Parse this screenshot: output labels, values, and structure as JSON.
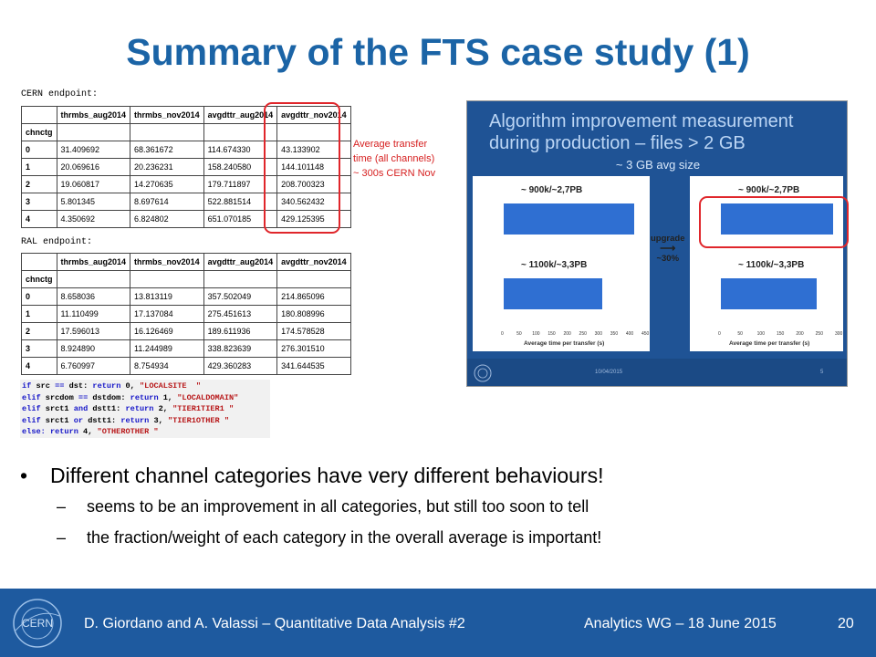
{
  "slide": {
    "title": "Summary of the FTS case study (1)",
    "cern_label": "CERN endpoint:",
    "ral_label": "RAL endpoint:",
    "annotation": [
      "Average transfer",
      "time (all channels)",
      "~ 300s CERN Nov"
    ],
    "tables": {
      "headers": [
        "",
        "thrmbs_aug2014",
        "thrmbs_nov2014",
        "avgdttr_aug2014",
        "avgdttr_nov2014"
      ],
      "index_label": "chnctg",
      "cern": [
        [
          "0",
          "31.409692",
          "68.361672",
          "114.674330",
          "43.133902"
        ],
        [
          "1",
          "20.069616",
          "20.236231",
          "158.240580",
          "144.101148"
        ],
        [
          "2",
          "19.060817",
          "14.270635",
          "179.711897",
          "208.700323"
        ],
        [
          "3",
          "5.801345",
          "8.697614",
          "522.881514",
          "340.562432"
        ],
        [
          "4",
          "4.350692",
          "6.824802",
          "651.070185",
          "429.125395"
        ]
      ],
      "ral": [
        [
          "0",
          "8.658036",
          "13.813119",
          "357.502049",
          "214.865096"
        ],
        [
          "1",
          "11.110499",
          "17.137084",
          "275.451613",
          "180.808996"
        ],
        [
          "2",
          "17.596013",
          "16.126469",
          "189.611936",
          "174.578528"
        ],
        [
          "3",
          "8.924890",
          "11.244989",
          "338.823639",
          "276.301510"
        ],
        [
          "4",
          "6.760997",
          "8.754934",
          "429.360283",
          "341.644535"
        ]
      ]
    },
    "code_lines": [
      [
        [
          "k",
          "if "
        ],
        [
          "n",
          "src "
        ],
        [
          "k",
          "== "
        ],
        [
          "n",
          "dst: "
        ],
        [
          "k",
          "return "
        ],
        [
          "n",
          "0, "
        ],
        [
          "s",
          "\"LOCALSITE  \""
        ]
      ],
      [
        [
          "k",
          "elif "
        ],
        [
          "n",
          "srcdom "
        ],
        [
          "k",
          "== "
        ],
        [
          "n",
          "dstdom: "
        ],
        [
          "k",
          "return "
        ],
        [
          "n",
          "1, "
        ],
        [
          "s",
          "\"LOCALDOMAIN\""
        ]
      ],
      [
        [
          "k",
          "elif "
        ],
        [
          "n",
          "srct1 "
        ],
        [
          "k",
          "and "
        ],
        [
          "n",
          "dstt1: "
        ],
        [
          "k",
          "return "
        ],
        [
          "n",
          "2, "
        ],
        [
          "s",
          "\"TIER1TIER1 \""
        ]
      ],
      [
        [
          "k",
          "elif "
        ],
        [
          "n",
          "srct1 "
        ],
        [
          "k",
          "or "
        ],
        [
          "n",
          "dstt1: "
        ],
        [
          "k",
          "return "
        ],
        [
          "n",
          "3, "
        ],
        [
          "s",
          "\"TIER1OTHER \""
        ]
      ],
      [
        [
          "k",
          "else: return "
        ],
        [
          "n",
          "4, "
        ],
        [
          "s",
          "\"OTHEROTHER \""
        ]
      ]
    ],
    "inset": {
      "title_line1": "Algorithm improvement measurement",
      "title_line2": "during production – files > 2 GB",
      "subtitle": "~ 3 GB avg size",
      "upgrade_line1": "upgrade",
      "upgrade_line2": "~30%",
      "date": "10/04/2015",
      "page": "5",
      "axis_label": "Average time per transfer (s)",
      "plots": [
        {
          "label": "~ 900k/~2,7PB",
          "value": 0.93
        },
        {
          "label": "~ 1100k/~3,3PB",
          "value": 0.7
        },
        {
          "label": "~ 900k/~2,7PB",
          "value": 0.96
        },
        {
          "label": "~ 1100k/~3,3PB",
          "value": 0.82
        }
      ],
      "left_ticks": [
        "0",
        "50",
        "100",
        "150",
        "200",
        "250",
        "300",
        "350",
        "400",
        "450"
      ],
      "right_ticks": [
        "0",
        "50",
        "100",
        "150",
        "200",
        "250",
        "300"
      ]
    },
    "bullets": {
      "main": "Different channel categories have very different behaviours!",
      "sub1": "seems to be an improvement in all categories, but still too soon to tell",
      "sub2": "the fraction/weight of each category in the overall average is important!"
    },
    "footer": {
      "left": "D. Giordano and A. Valassi – Quantitative Data Analysis #2",
      "right": "Analytics WG – 18 June 2015",
      "page": "20",
      "logo_text": "CERN"
    },
    "colors": {
      "title": "#1b64a6",
      "footer": "#1e5a9f",
      "highlight": "#e0262b",
      "bar": "#2f6fd2"
    }
  }
}
